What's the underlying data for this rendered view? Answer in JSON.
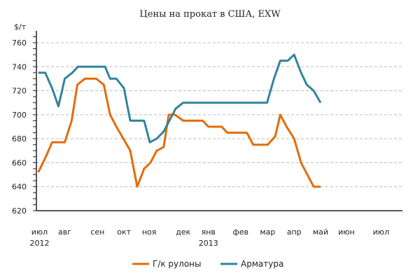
{
  "chart_data": {
    "type": "line",
    "title": "Цены на прокат в США, EXW",
    "ylabel": "$/т",
    "xlabel": "",
    "ylim": [
      620,
      770
    ],
    "yticks": [
      620,
      640,
      660,
      680,
      700,
      720,
      740,
      760
    ],
    "xlim": [
      -0.3,
      57.8
    ],
    "x_unit": "weeks since early Jul 2012",
    "grid": true,
    "legend": "bottom",
    "xticks": [
      {
        "x": 0.2,
        "label": "июл",
        "year": "2012"
      },
      {
        "x": 4.2,
        "label": "авг"
      },
      {
        "x": 9.4,
        "label": "сен"
      },
      {
        "x": 13.6,
        "label": "окт"
      },
      {
        "x": 17.6,
        "label": "ноя"
      },
      {
        "x": 23,
        "label": "дек"
      },
      {
        "x": 27,
        "label": "янв",
        "year": "2013"
      },
      {
        "x": 32.1,
        "label": "фев"
      },
      {
        "x": 36.4,
        "label": "мар"
      },
      {
        "x": 40.6,
        "label": "апр"
      },
      {
        "x": 44.8,
        "label": "май"
      },
      {
        "x": 48.9,
        "label": "июн"
      },
      {
        "x": 54.4,
        "label": "июл"
      }
    ],
    "series": [
      {
        "name": "Г/к рулоны",
        "color": "#E36C0A",
        "x": [
          0,
          1.2,
          2.2,
          4.2,
          5.3,
          6.2,
          7.4,
          9.2,
          10.4,
          11.4,
          12.4,
          14.6,
          15.7,
          16.8,
          17.8,
          18.8,
          19.9,
          20.7,
          21.7,
          23,
          26.1,
          27,
          29.1,
          30,
          33.1,
          34.1,
          36.4,
          37.6,
          38.4,
          39.4,
          40.6,
          41.7,
          43.7,
          44.8
        ],
        "values": [
          652,
          665,
          677,
          677,
          695,
          725,
          730,
          730,
          725,
          700,
          690,
          670,
          640,
          655,
          660,
          670,
          673,
          700,
          700,
          695,
          695,
          690,
          690,
          685,
          685,
          675,
          675,
          682,
          700,
          690,
          680,
          660,
          640,
          640
        ]
      },
      {
        "name": "Арматура",
        "color": "#31849B",
        "x": [
          0,
          1.1,
          2.2,
          3.2,
          4.2,
          5.4,
          6.3,
          10.6,
          11.4,
          12.4,
          13.6,
          14.6,
          16.8,
          17.7,
          18.8,
          19.9,
          21.8,
          23,
          36.3,
          37.4,
          38.4,
          39.6,
          40.6,
          41.7,
          42.6,
          43.7,
          44.8
        ],
        "values": [
          735,
          735,
          722,
          707,
          730,
          735,
          740,
          740,
          730,
          730,
          722,
          695,
          695,
          677,
          680,
          686,
          705,
          710,
          710,
          730,
          745,
          745,
          750,
          735,
          725,
          720,
          710
        ]
      }
    ]
  }
}
